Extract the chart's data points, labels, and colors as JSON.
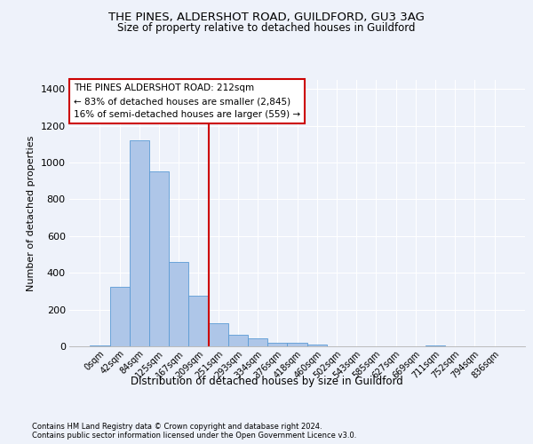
{
  "title1": "THE PINES, ALDERSHOT ROAD, GUILDFORD, GU3 3AG",
  "title2": "Size of property relative to detached houses in Guildford",
  "xlabel": "Distribution of detached houses by size in Guildford",
  "ylabel": "Number of detached properties",
  "footer1": "Contains HM Land Registry data © Crown copyright and database right 2024.",
  "footer2": "Contains public sector information licensed under the Open Government Licence v3.0.",
  "bar_labels": [
    "0sqm",
    "42sqm",
    "84sqm",
    "125sqm",
    "167sqm",
    "209sqm",
    "251sqm",
    "293sqm",
    "334sqm",
    "376sqm",
    "418sqm",
    "460sqm",
    "502sqm",
    "543sqm",
    "585sqm",
    "627sqm",
    "669sqm",
    "711sqm",
    "752sqm",
    "794sqm",
    "836sqm"
  ],
  "bar_values": [
    5,
    325,
    1120,
    950,
    460,
    275,
    125,
    65,
    45,
    20,
    20,
    10,
    0,
    0,
    0,
    0,
    0,
    5,
    0,
    0,
    0
  ],
  "bar_color": "#aec6e8",
  "bar_edge_color": "#5b9bd5",
  "highlight_line_color": "#cc0000",
  "highlight_line_index": 5,
  "annotation_text": "THE PINES ALDERSHOT ROAD: 212sqm\n← 83% of detached houses are smaller (2,845)\n16% of semi-detached houses are larger (559) →",
  "annotation_box_edgecolor": "#cc0000",
  "ylim": [
    0,
    1450
  ],
  "yticks": [
    0,
    200,
    400,
    600,
    800,
    1000,
    1200,
    1400
  ],
  "bg_color": "#eef2fa",
  "grid_color": "#ffffff"
}
